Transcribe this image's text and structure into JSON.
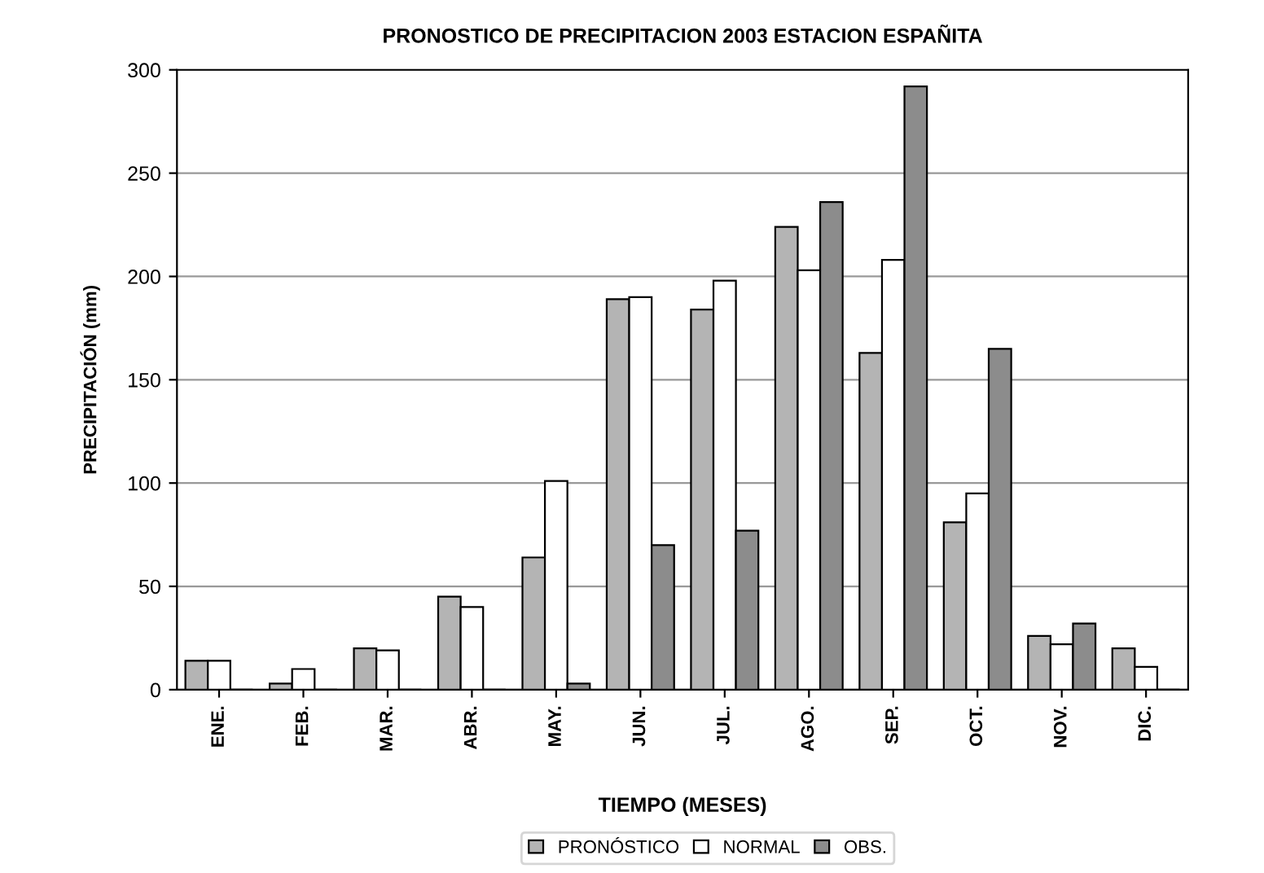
{
  "chart_data": {
    "type": "bar",
    "title": "PRONOSTICO DE PRECIPITACION 2003 ESTACION ESPAÑITA",
    "xlabel": "TIEMPO (MESES)",
    "ylabel": "PRECIPITACIÓN (mm)",
    "categories": [
      "ENE.",
      "FEB.",
      "MAR.",
      "ABR.",
      "MAY.",
      "JUN.",
      "JUL.",
      "AGO.",
      "SEP.",
      "OCT.",
      "NOV.",
      "DIC."
    ],
    "series": [
      {
        "name": "PRONÓSTICO",
        "color": "#b4b4b4",
        "values": [
          14,
          3,
          20,
          45,
          64,
          189,
          184,
          224,
          163,
          81,
          26,
          20
        ]
      },
      {
        "name": "NORMAL",
        "color": "#ffffff",
        "values": [
          14,
          10,
          19,
          40,
          101,
          190,
          198,
          203,
          208,
          95,
          22,
          11
        ]
      },
      {
        "name": "OBS.",
        "color": "#8c8c8c",
        "values": [
          0,
          0,
          0,
          0,
          3,
          70,
          77,
          236,
          292,
          165,
          32,
          0
        ]
      }
    ],
    "ylim": [
      0,
      300
    ],
    "yticks": [
      0,
      50,
      100,
      150,
      200,
      250,
      300
    ],
    "grid": "y",
    "legend": "bottom"
  }
}
